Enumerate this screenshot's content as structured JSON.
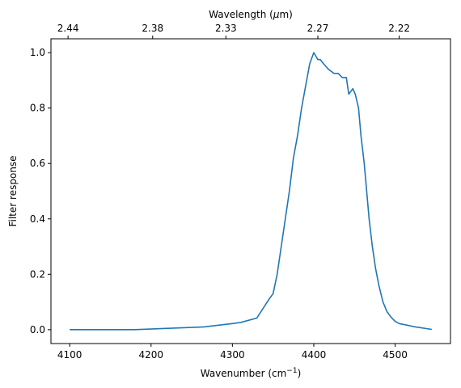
{
  "chart_data": {
    "type": "line",
    "title": "",
    "xlabel": "Wavenumber (cm",
    "xlabel_sup": "−1",
    "xlabel_end": ")",
    "ylabel": "Filter response",
    "top_xlabel": "Wavelength (",
    "top_xlabel_mu": "μ",
    "top_xlabel_end": "m)",
    "xlim": [
      4077,
      4568
    ],
    "ylim": [
      -0.05,
      1.05
    ],
    "x_ticks": [
      4100,
      4200,
      4300,
      4400,
      4500
    ],
    "y_ticks": [
      0.0,
      0.2,
      0.4,
      0.6,
      0.8,
      1.0
    ],
    "top_ticks": [
      {
        "label": "2.44",
        "x": 4098
      },
      {
        "label": "2.38",
        "x": 4202
      },
      {
        "label": "2.33",
        "x": 4292
      },
      {
        "label": "2.27",
        "x": 4405
      },
      {
        "label": "2.22",
        "x": 4505
      }
    ],
    "grid": false,
    "line_color": "#1f77b4",
    "series": [
      {
        "x": [
          4100,
          4180,
          4265,
          4300,
          4310,
          4330,
          4345,
          4350,
          4355,
          4360,
          4365,
          4370,
          4375,
          4380,
          4385,
          4390,
          4395,
          4400,
          4403,
          4405,
          4408,
          4412,
          4418,
          4425,
          4430,
          4435,
          4440,
          4443,
          4448,
          4451,
          4455,
          4458,
          4462,
          4465,
          4468,
          4472,
          4476,
          4480,
          4485,
          4490,
          4495,
          4500,
          4505,
          4525,
          4545
        ],
        "y": [
          0.0,
          0.0,
          0.01,
          0.022,
          0.026,
          0.042,
          0.11,
          0.13,
          0.2,
          0.3,
          0.4,
          0.5,
          0.62,
          0.7,
          0.8,
          0.88,
          0.96,
          1.0,
          0.985,
          0.975,
          0.975,
          0.96,
          0.94,
          0.925,
          0.925,
          0.91,
          0.91,
          0.85,
          0.87,
          0.85,
          0.8,
          0.7,
          0.6,
          0.5,
          0.4,
          0.3,
          0.22,
          0.16,
          0.1,
          0.065,
          0.045,
          0.03,
          0.022,
          0.01,
          0.001
        ]
      }
    ]
  }
}
